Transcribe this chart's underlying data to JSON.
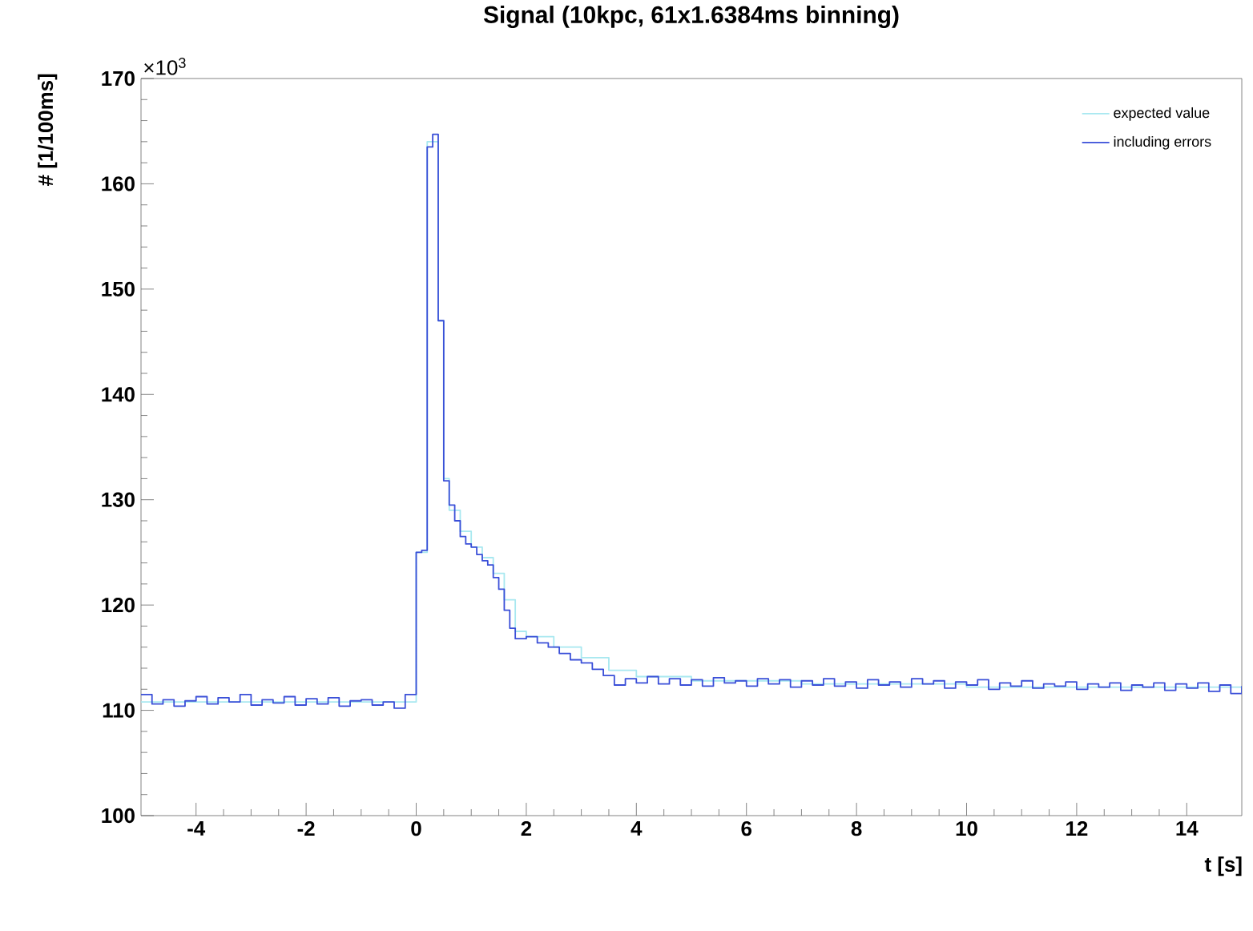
{
  "chart_data": {
    "type": "step",
    "title": "Signal (10kpc, 61x1.6384ms binning)",
    "xlabel": "t [s]",
    "ylabel": "# [1/100ms]",
    "annotations": [
      "×10$^{3}$"
    ],
    "xlim": [
      -5,
      15
    ],
    "xticks": [
      -4,
      -2,
      0,
      2,
      4,
      6,
      8,
      10,
      12,
      14
    ],
    "ylim": [
      100,
      170
    ],
    "yticks": [
      100,
      110,
      120,
      130,
      140,
      150,
      160,
      170
    ],
    "grid": false,
    "legend": "top right",
    "series": [
      {
        "name": "expected value",
        "color": "#a8e8f0",
        "x": [
          -5,
          0,
          0.2,
          0.4,
          0.5,
          0.6,
          0.8,
          1.0,
          1.2,
          1.4,
          1.6,
          1.8,
          2.0,
          2.5,
          3.0,
          3.5,
          4.0,
          5,
          7,
          10,
          15
        ],
        "values": [
          110.8,
          125,
          164,
          147,
          132,
          129,
          127,
          125.5,
          124.5,
          123,
          120.5,
          117.5,
          117,
          116,
          115,
          113.8,
          113.2,
          112.8,
          112.5,
          112.2,
          112.2
        ]
      },
      {
        "name": "including errors",
        "color": "#3a4fd8",
        "x": [
          -5,
          -4.8,
          -4.6,
          -4.4,
          -4.2,
          -4,
          -3.8,
          -3.6,
          -3.4,
          -3.2,
          -3,
          -2.8,
          -2.6,
          -2.4,
          -2.2,
          -2,
          -1.8,
          -1.6,
          -1.4,
          -1.2,
          -1,
          -0.8,
          -0.6,
          -0.4,
          -0.2,
          0,
          0.1,
          0.2,
          0.3,
          0.4,
          0.5,
          0.6,
          0.7,
          0.8,
          0.9,
          1.0,
          1.1,
          1.2,
          1.3,
          1.4,
          1.5,
          1.6,
          1.7,
          1.8,
          2.0,
          2.2,
          2.4,
          2.6,
          2.8,
          3.0,
          3.2,
          3.4,
          3.6,
          3.8,
          4.0,
          4.2,
          4.4,
          4.6,
          4.8,
          5.0,
          5.2,
          5.4,
          5.6,
          5.8,
          6.0,
          6.2,
          6.4,
          6.6,
          6.8,
          7.0,
          7.2,
          7.4,
          7.6,
          7.8,
          8.0,
          8.2,
          8.4,
          8.6,
          8.8,
          9.0,
          9.2,
          9.4,
          9.6,
          9.8,
          10.0,
          10.2,
          10.4,
          10.6,
          10.8,
          11.0,
          11.2,
          11.4,
          11.6,
          11.8,
          12.0,
          12.2,
          12.4,
          12.6,
          12.8,
          13.0,
          13.2,
          13.4,
          13.6,
          13.8,
          14.0,
          14.2,
          14.4,
          14.6,
          14.8,
          15
        ],
        "values": [
          111.5,
          110.6,
          111.0,
          110.4,
          110.9,
          111.3,
          110.6,
          111.2,
          110.8,
          111.5,
          110.5,
          111.0,
          110.7,
          111.3,
          110.5,
          111.1,
          110.6,
          111.2,
          110.4,
          110.9,
          111.0,
          110.5,
          110.8,
          110.2,
          111.5,
          125,
          125.2,
          163.5,
          164.7,
          147,
          131.8,
          129.5,
          128,
          126.5,
          125.8,
          125.5,
          124.8,
          124.2,
          123.8,
          122.6,
          121.5,
          119.5,
          117.8,
          116.8,
          117.0,
          116.4,
          116.0,
          115.4,
          114.8,
          114.5,
          113.9,
          113.3,
          112.4,
          113.0,
          112.6,
          113.2,
          112.5,
          113.0,
          112.4,
          112.9,
          112.3,
          113.1,
          112.6,
          112.8,
          112.3,
          113.0,
          112.5,
          112.9,
          112.2,
          112.8,
          112.4,
          113.0,
          112.3,
          112.7,
          112.1,
          112.9,
          112.4,
          112.7,
          112.2,
          113.0,
          112.5,
          112.8,
          112.1,
          112.7,
          112.4,
          112.9,
          112.0,
          112.6,
          112.3,
          112.8,
          112.1,
          112.5,
          112.3,
          112.7,
          112.0,
          112.5,
          112.2,
          112.6,
          111.9,
          112.4,
          112.2,
          112.6,
          111.9,
          112.5,
          112.1,
          112.6,
          111.8,
          112.4,
          111.6,
          112.3
        ]
      }
    ]
  }
}
